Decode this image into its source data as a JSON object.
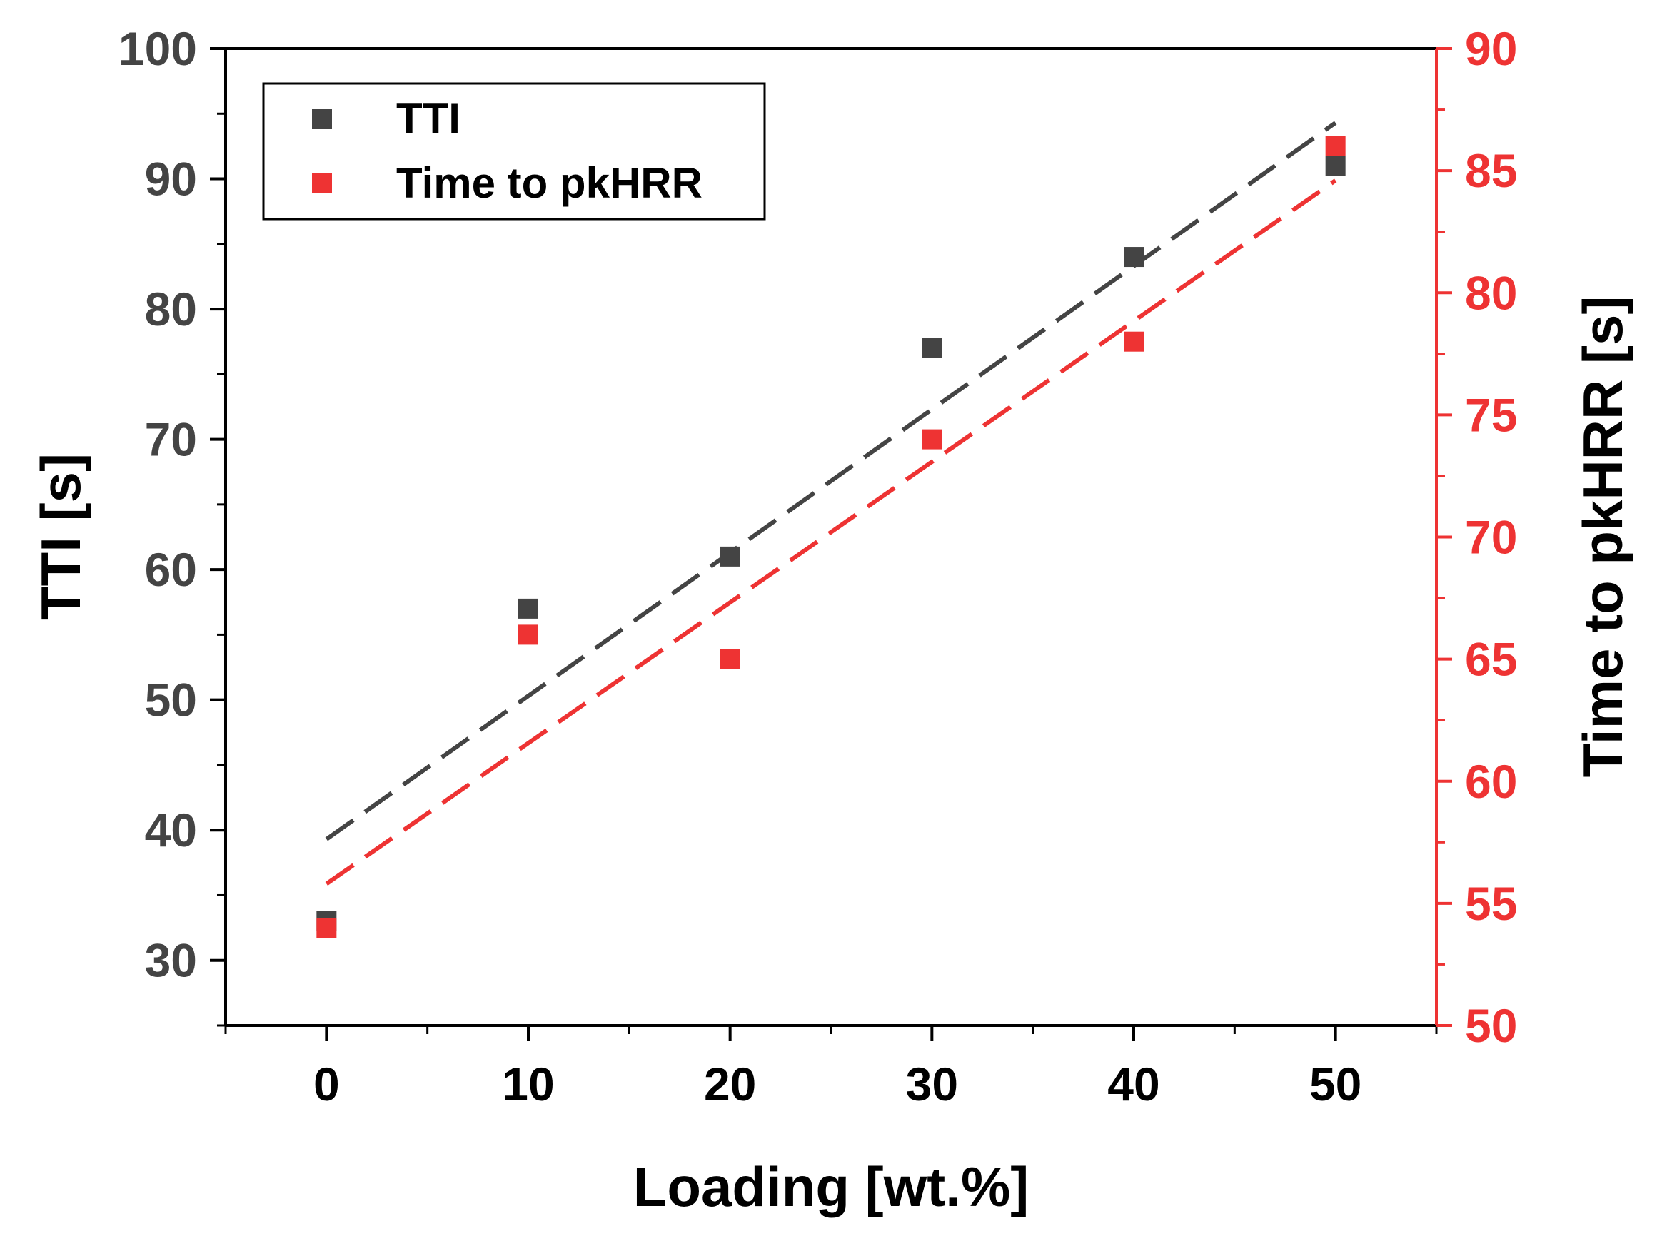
{
  "chart_data": {
    "type": "scatter",
    "x_axis": {
      "label": "Loading [wt.%]",
      "range": [
        -5,
        55
      ],
      "ticks": [
        0,
        10,
        20,
        30,
        40,
        50
      ],
      "tick_labels": [
        "0",
        "10",
        "20",
        "30",
        "40",
        "50"
      ]
    },
    "y_axis_left": {
      "label": "TTI [s]",
      "range": [
        25,
        100
      ],
      "ticks": [
        30,
        40,
        50,
        60,
        70,
        80,
        90,
        100
      ],
      "tick_labels": [
        "30",
        "40",
        "50",
        "60",
        "70",
        "80",
        "90",
        "100"
      ],
      "color": "#444444"
    },
    "y_axis_right": {
      "label": "Time to pkHRR [s]",
      "range": [
        50,
        90
      ],
      "ticks": [
        50,
        55,
        60,
        65,
        70,
        75,
        80,
        85,
        90
      ],
      "tick_labels": [
        "50",
        "55",
        "60",
        "65",
        "70",
        "75",
        "80",
        "85",
        "90"
      ],
      "color": "#ee3333"
    },
    "series": [
      {
        "name": "TTI",
        "axis": "left",
        "color": "#444444",
        "x": [
          0,
          10,
          20,
          30,
          40,
          50
        ],
        "values": [
          33,
          57,
          61,
          77,
          84,
          91
        ],
        "fit": {
          "x": [
            0,
            50
          ],
          "y": [
            39.3,
            94.3
          ]
        }
      },
      {
        "name": "Time to pkHRR",
        "axis": "right",
        "color": "#ee3333",
        "x": [
          0,
          10,
          20,
          30,
          40,
          50
        ],
        "values": [
          54,
          66,
          65,
          74,
          78,
          86
        ],
        "fit": {
          "x": [
            0,
            50
          ],
          "y": [
            55.8,
            84.6
          ]
        }
      }
    ],
    "legend": {
      "position": "top-left",
      "entries": [
        "TTI",
        "Time to pkHRR"
      ]
    },
    "grid": false
  }
}
